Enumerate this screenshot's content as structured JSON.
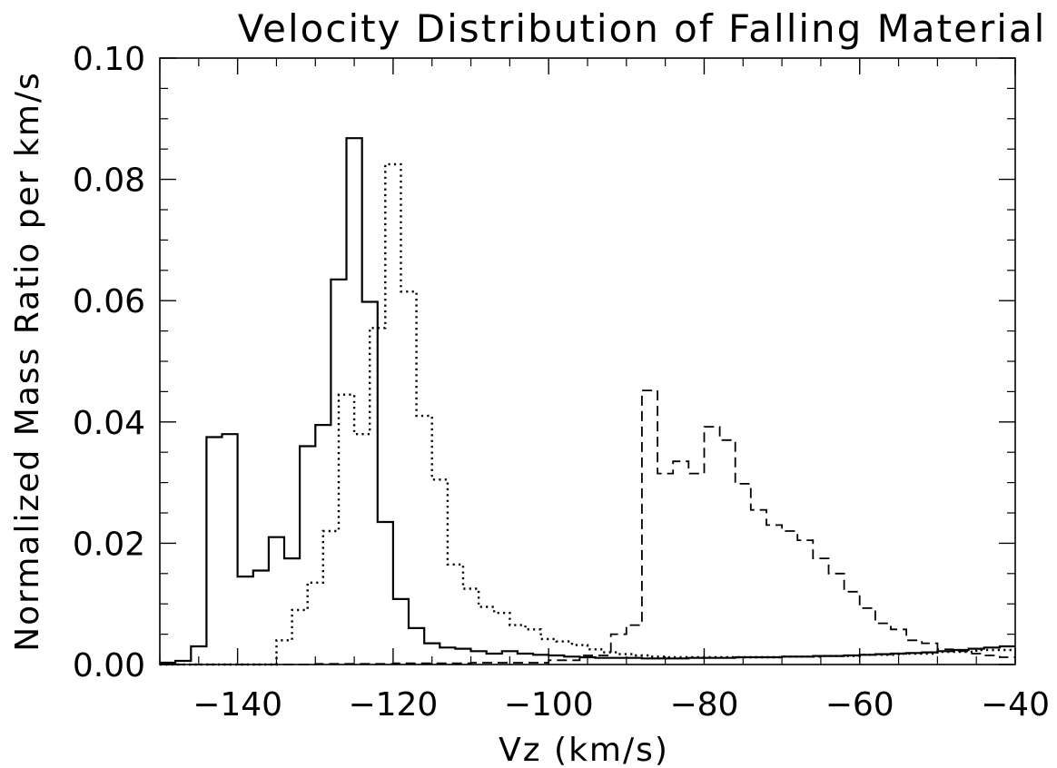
{
  "chart_data": {
    "type": "line",
    "title": "Velocity Distribution of Falling Material",
    "xlabel": "Vz (km/s)",
    "ylabel": "Normalized Mass Ratio per km/s",
    "xlim": [
      -150,
      -40
    ],
    "ylim": [
      0,
      0.1
    ],
    "x_ticks": [
      {
        "value": -140,
        "label": "−140"
      },
      {
        "value": -120,
        "label": "−120"
      },
      {
        "value": -100,
        "label": "−100"
      },
      {
        "value": -80,
        "label": "−80"
      },
      {
        "value": -60,
        "label": "−60"
      },
      {
        "value": -40,
        "label": "−40"
      }
    ],
    "y_ticks": [
      {
        "value": 0.0,
        "label": "0.00"
      },
      {
        "value": 0.02,
        "label": "0.02"
      },
      {
        "value": 0.04,
        "label": "0.04"
      },
      {
        "value": 0.06,
        "label": "0.06"
      },
      {
        "value": 0.08,
        "label": "0.08"
      },
      {
        "value": 0.1,
        "label": "0.10"
      }
    ],
    "grid": false,
    "legend": "none",
    "series": [
      {
        "style": "solid",
        "bin_edges": [
          -150,
          -148,
          -146,
          -144,
          -142,
          -140,
          -138,
          -136,
          -134,
          -132,
          -130,
          -128,
          -126,
          -124,
          -122,
          -120,
          -118,
          -116,
          -114,
          -112,
          -110,
          -108,
          -106,
          -104,
          -102,
          -100,
          -98,
          -96,
          -94,
          -92,
          -90,
          -88,
          -86,
          -84,
          -82,
          -80,
          -78,
          -76,
          -74,
          -72,
          -70,
          -68,
          -66,
          -64,
          -62,
          -60,
          -58,
          -56,
          -54,
          -52,
          -50,
          -48,
          -46,
          -44,
          -42,
          -40
        ],
        "values": [
          0.0003,
          0.0006,
          0.003,
          0.0375,
          0.038,
          0.0145,
          0.0155,
          0.021,
          0.0175,
          0.036,
          0.0395,
          0.0635,
          0.0868,
          0.0598,
          0.0235,
          0.0108,
          0.006,
          0.0035,
          0.0028,
          0.0026,
          0.0022,
          0.0018,
          0.0022,
          0.0018,
          0.0016,
          0.0015,
          0.0013,
          0.0012,
          0.0011,
          0.0011,
          0.0011,
          0.001,
          0.001,
          0.001,
          0.0011,
          0.0011,
          0.0011,
          0.0012,
          0.0012,
          0.0012,
          0.0013,
          0.0013,
          0.0014,
          0.0014,
          0.0015,
          0.0016,
          0.0017,
          0.0018,
          0.0019,
          0.002,
          0.0022,
          0.0024,
          0.0026,
          0.0028,
          0.003
        ]
      },
      {
        "style": "dotted",
        "bin_edges": [
          -150,
          -135,
          -133,
          -131,
          -129,
          -127,
          -125,
          -123,
          -121,
          -119,
          -117,
          -115,
          -113,
          -111,
          -109,
          -107,
          -105,
          -103,
          -101,
          -99,
          -97,
          -95,
          -93,
          -91,
          -89,
          -87,
          -85,
          -80,
          -75,
          -70,
          -65,
          -60,
          -55,
          -50,
          -45,
          -40
        ],
        "values": [
          0.0,
          0.004,
          0.009,
          0.0135,
          0.022,
          0.0445,
          0.038,
          0.0555,
          0.0825,
          0.0615,
          0.041,
          0.0305,
          0.0165,
          0.0125,
          0.0095,
          0.0085,
          0.0065,
          0.0058,
          0.0042,
          0.0038,
          0.0032,
          0.0025,
          0.002,
          0.0017,
          0.0015,
          0.0013,
          0.0012,
          0.0012,
          0.0012,
          0.0013,
          0.0014,
          0.0016,
          0.0018,
          0.0021,
          0.0024
        ]
      },
      {
        "style": "dashed",
        "bin_edges": [
          -150,
          -130,
          -120,
          -110,
          -100,
          -96,
          -92,
          -90,
          -88,
          -86,
          -84,
          -82,
          -80,
          -78,
          -76,
          -74,
          -72,
          -70,
          -68,
          -66,
          -64,
          -62,
          -60,
          -58,
          -56,
          -54,
          -52,
          -50,
          -48,
          -46,
          -44,
          -42,
          -40
        ],
        "values": [
          0.0,
          0.0001,
          0.0002,
          0.0003,
          0.0007,
          0.0015,
          0.005,
          0.0065,
          0.0452,
          0.0315,
          0.0335,
          0.0315,
          0.0392,
          0.037,
          0.0298,
          0.0255,
          0.023,
          0.022,
          0.0205,
          0.0175,
          0.015,
          0.012,
          0.0093,
          0.0068,
          0.0058,
          0.004,
          0.0035,
          0.0025,
          0.0022,
          0.0018,
          0.0015,
          0.0012
        ]
      }
    ]
  }
}
